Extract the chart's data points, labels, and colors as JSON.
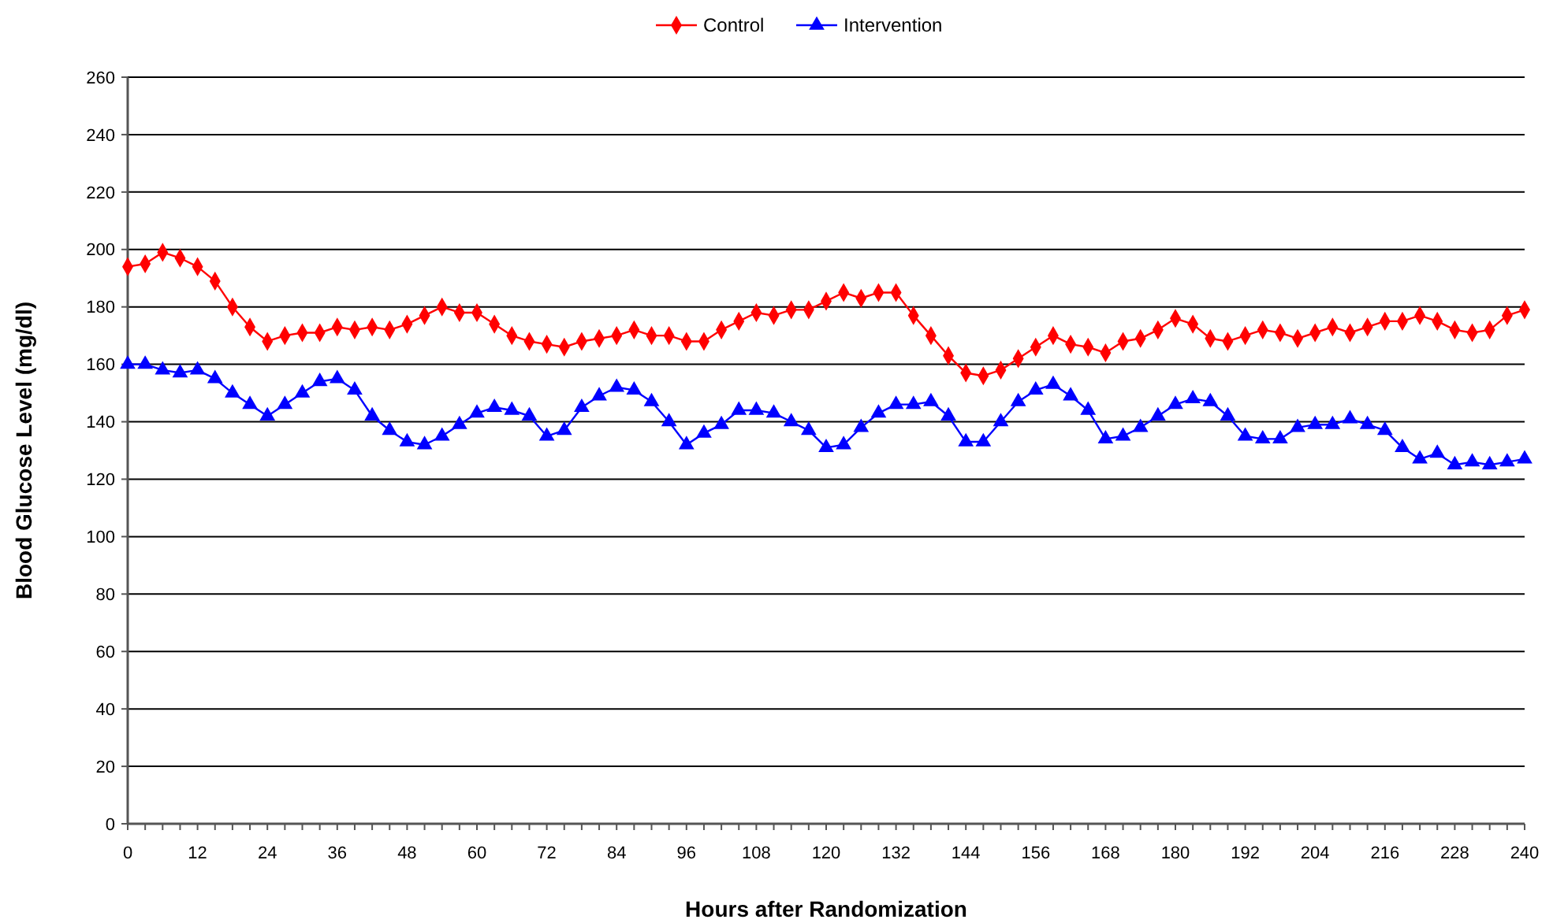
{
  "chart_data": {
    "type": "line",
    "xlabel": "Hours after Randomization",
    "ylabel": "Blood Glucose Level (mg/dl)",
    "x": [
      0,
      3,
      6,
      9,
      12,
      15,
      18,
      21,
      24,
      27,
      30,
      33,
      36,
      39,
      42,
      45,
      48,
      51,
      54,
      57,
      60,
      63,
      66,
      69,
      72,
      75,
      78,
      81,
      84,
      87,
      90,
      93,
      96,
      99,
      102,
      105,
      108,
      111,
      114,
      117,
      120,
      123,
      126,
      129,
      132,
      135,
      138,
      141,
      144,
      147,
      150,
      153,
      156,
      159,
      162,
      165,
      168,
      171,
      174,
      177,
      180,
      183,
      186,
      189,
      192,
      195,
      198,
      201,
      204,
      207,
      210,
      213,
      216,
      219,
      222,
      225,
      228,
      231,
      234,
      237,
      240
    ],
    "series": [
      {
        "name": "Control",
        "color": "#ff0000",
        "marker": "diamond",
        "values": [
          194,
          195,
          199,
          197,
          194,
          189,
          180,
          173,
          168,
          170,
          171,
          171,
          173,
          172,
          173,
          172,
          174,
          177,
          180,
          178,
          178,
          174,
          170,
          168,
          167,
          166,
          168,
          169,
          170,
          172,
          170,
          170,
          168,
          168,
          172,
          175,
          178,
          177,
          179,
          179,
          182,
          185,
          183,
          185,
          185,
          177,
          170,
          163,
          157,
          156,
          158,
          162,
          166,
          170,
          167,
          166,
          164,
          168,
          169,
          172,
          176,
          174,
          169,
          168,
          170,
          172,
          171,
          169,
          171,
          173,
          171,
          173,
          175,
          175,
          177,
          175,
          172,
          171,
          172,
          177,
          179
        ]
      },
      {
        "name": "Intervention",
        "color": "#0000ff",
        "marker": "triangle",
        "values": [
          160,
          160,
          158,
          157,
          158,
          155,
          150,
          146,
          142,
          146,
          150,
          154,
          155,
          151,
          142,
          137,
          133,
          132,
          135,
          139,
          143,
          145,
          144,
          142,
          135,
          137,
          145,
          149,
          152,
          151,
          147,
          140,
          132,
          136,
          139,
          144,
          144,
          143,
          140,
          137,
          131,
          132,
          138,
          143,
          146,
          146,
          147,
          142,
          133,
          133,
          140,
          147,
          151,
          153,
          149,
          144,
          134,
          135,
          138,
          142,
          146,
          148,
          147,
          142,
          135,
          134,
          134,
          138,
          139,
          139,
          141,
          139,
          137,
          131,
          127,
          129,
          125,
          126,
          125,
          126,
          127
        ]
      }
    ],
    "xlim": [
      0,
      240
    ],
    "xticks": [
      0,
      {
        "value": 3,
        "label": null
      },
      {
        "value": 6,
        "label": null
      },
      {
        "value": 9,
        "label": null
      },
      12,
      {
        "value": 15,
        "label": null
      },
      {
        "value": 18,
        "label": null
      },
      {
        "value": 21,
        "label": null
      },
      24,
      {
        "value": 27,
        "label": null
      },
      {
        "value": 30,
        "label": null
      },
      {
        "value": 33,
        "label": null
      },
      36,
      {
        "value": 39,
        "label": null
      },
      {
        "value": 42,
        "label": null
      },
      {
        "value": 45,
        "label": null
      },
      48,
      {
        "value": 51,
        "label": null
      },
      {
        "value": 54,
        "label": null
      },
      {
        "value": 57,
        "label": null
      },
      60,
      {
        "value": 63,
        "label": null
      },
      {
        "value": 66,
        "label": null
      },
      {
        "value": 69,
        "label": null
      },
      72,
      {
        "value": 75,
        "label": null
      },
      {
        "value": 78,
        "label": null
      },
      {
        "value": 81,
        "label": null
      },
      84,
      {
        "value": 87,
        "label": null
      },
      {
        "value": 90,
        "label": null
      },
      {
        "value": 93,
        "label": null
      },
      96,
      {
        "value": 99,
        "label": null
      },
      {
        "value": 102,
        "label": null
      },
      {
        "value": 105,
        "label": null
      },
      108,
      {
        "value": 111,
        "label": null
      },
      {
        "value": 114,
        "label": null
      },
      {
        "value": 117,
        "label": null
      },
      120,
      {
        "value": 123,
        "label": null
      },
      {
        "value": 126,
        "label": null
      },
      {
        "value": 129,
        "label": null
      },
      132,
      {
        "value": 135,
        "label": null
      },
      {
        "value": 138,
        "label": null
      },
      {
        "value": 141,
        "label": null
      },
      144,
      {
        "value": 147,
        "label": null
      },
      {
        "value": 150,
        "label": null
      },
      {
        "value": 153,
        "label": null
      },
      156,
      {
        "value": 159,
        "label": null
      },
      {
        "value": 162,
        "label": null
      },
      {
        "value": 165,
        "label": null
      },
      168,
      {
        "value": 171,
        "label": null
      },
      {
        "value": 174,
        "label": null
      },
      {
        "value": 177,
        "label": null
      },
      180,
      {
        "value": 183,
        "label": null
      },
      {
        "value": 186,
        "label": null
      },
      {
        "value": 189,
        "label": null
      },
      192,
      {
        "value": 195,
        "label": null
      },
      {
        "value": 198,
        "label": null
      },
      {
        "value": 201,
        "label": null
      },
      204,
      {
        "value": 207,
        "label": null
      },
      {
        "value": 210,
        "label": null
      },
      {
        "value": 213,
        "label": null
      },
      216,
      {
        "value": 219,
        "label": null
      },
      {
        "value": 222,
        "label": null
      },
      {
        "value": 225,
        "label": null
      },
      228,
      {
        "value": 231,
        "label": null
      },
      {
        "value": 234,
        "label": null
      },
      {
        "value": 237,
        "label": null
      },
      240
    ],
    "ylim": [
      0,
      260
    ],
    "yticks": [
      0,
      20,
      40,
      60,
      80,
      100,
      120,
      140,
      160,
      180,
      200,
      220,
      240,
      260
    ],
    "grid": "y",
    "legend": "top",
    "line_style": "solid"
  }
}
